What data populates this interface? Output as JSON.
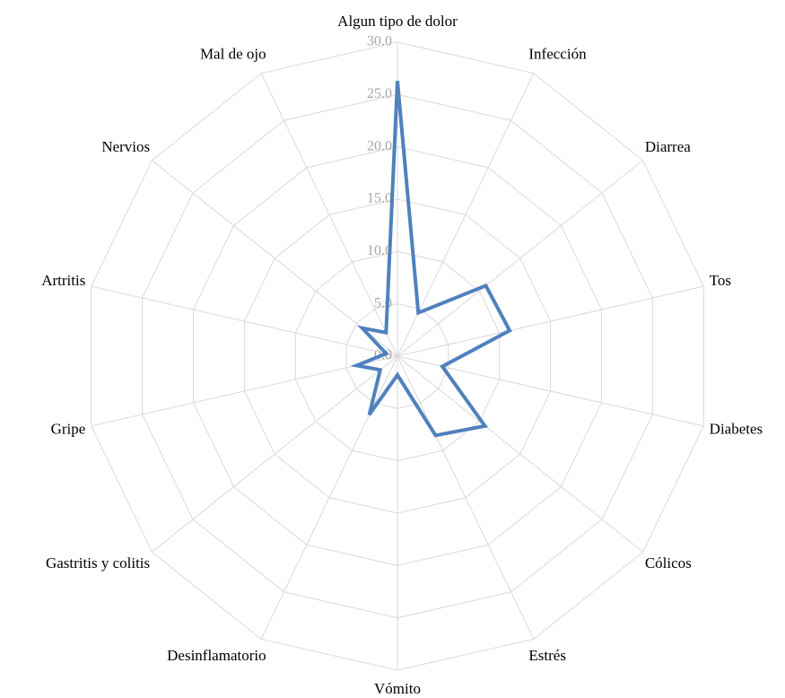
{
  "chart_data": {
    "type": "radar",
    "categories": [
      "Algun tipo de dolor",
      "Infección",
      "Diarrea",
      "Tos",
      "Diabetes",
      "Cólicos",
      "Estrés",
      "Vómito",
      "Desinflamatorio",
      "Gastritis y colitis",
      "Gripe",
      "Artritis",
      "Nervios",
      "Mal de ojo"
    ],
    "values": [
      26.3,
      4.6,
      10.8,
      11.0,
      4.4,
      10.7,
      8.4,
      1.8,
      6.2,
      2.1,
      4.0,
      1.1,
      4.3,
      2.5
    ],
    "color": "#4f81bd",
    "ylim": [
      0,
      30
    ],
    "yticks": [
      {
        "value": 0,
        "label": "0.0"
      },
      {
        "value": 5,
        "label": "5.0"
      },
      {
        "value": 10,
        "label": "10.0"
      },
      {
        "value": 15,
        "label": "15.0"
      },
      {
        "value": 20,
        "label": "20.0"
      },
      {
        "value": 25,
        "label": "25.0"
      },
      {
        "value": 30,
        "label": "30.0"
      }
    ],
    "grid": true
  }
}
